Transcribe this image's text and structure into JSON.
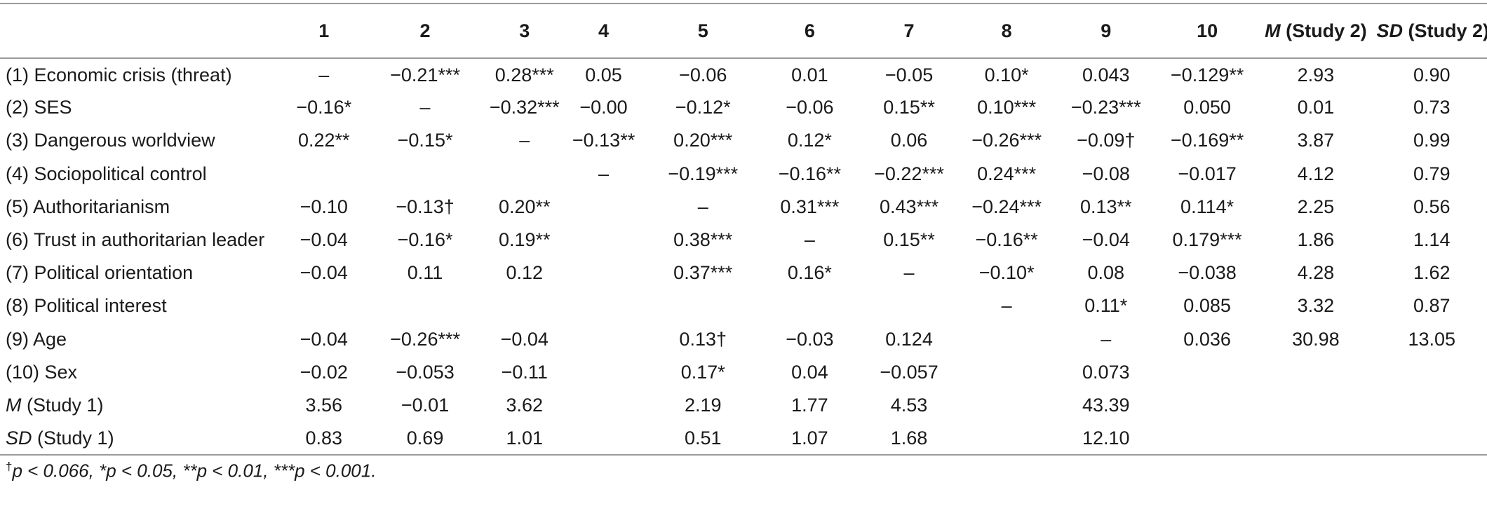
{
  "table": {
    "headers": [
      "",
      "1",
      "2",
      "3",
      "4",
      "5",
      "6",
      "7",
      "8",
      "9",
      "10",
      "M (Study 2)",
      "SD (Study 2)"
    ],
    "header_m": {
      "italic": "M",
      "rest": " (Study 2)"
    },
    "header_sd": {
      "italic": "SD",
      "rest": " (Study 2)"
    },
    "rows": [
      {
        "label": "(1) Economic crisis (threat)",
        "cells": [
          "–",
          "−0.21***",
          "0.28***",
          "0.05",
          "−0.06",
          "0.01",
          "−0.05",
          "0.10*",
          "0.043",
          "−0.129**",
          "2.93",
          "0.90"
        ]
      },
      {
        "label": "(2) SES",
        "cells": [
          "−0.16*",
          "–",
          "−0.32***",
          "−0.00",
          "−0.12*",
          "−0.06",
          "0.15**",
          "0.10***",
          "−0.23***",
          "0.050",
          "0.01",
          "0.73"
        ]
      },
      {
        "label": "(3) Dangerous worldview",
        "cells": [
          "0.22**",
          "−0.15*",
          "–",
          "−0.13**",
          "0.20***",
          "0.12*",
          "0.06",
          "−0.26***",
          "−0.09†",
          "−0.169**",
          "3.87",
          "0.99"
        ]
      },
      {
        "label": "(4) Sociopolitical control",
        "cells": [
          "",
          "",
          "",
          "–",
          "−0.19***",
          "−0.16**",
          "−0.22***",
          "0.24***",
          "−0.08",
          "−0.017",
          "4.12",
          "0.79"
        ]
      },
      {
        "label": "(5) Authoritarianism",
        "cells": [
          "−0.10",
          "−0.13†",
          "0.20**",
          "",
          "–",
          "0.31***",
          "0.43***",
          "−0.24***",
          "0.13**",
          "0.114*",
          "2.25",
          "0.56"
        ]
      },
      {
        "label": "(6) Trust in authoritarian leader",
        "cells": [
          "−0.04",
          "−0.16*",
          "0.19**",
          "",
          "0.38***",
          "–",
          "0.15**",
          "−0.16**",
          "−0.04",
          "0.179***",
          "1.86",
          "1.14"
        ]
      },
      {
        "label": "(7) Political orientation",
        "cells": [
          "−0.04",
          "0.11",
          "0.12",
          "",
          "0.37***",
          "0.16*",
          "–",
          "−0.10*",
          "0.08",
          "−0.038",
          "4.28",
          "1.62"
        ]
      },
      {
        "label": "(8) Political interest",
        "cells": [
          "",
          "",
          "",
          "",
          "",
          "",
          "",
          "–",
          "0.11*",
          "0.085",
          "3.32",
          "0.87"
        ]
      },
      {
        "label": "(9) Age",
        "cells": [
          "−0.04",
          "−0.26***",
          "−0.04",
          "",
          "0.13†",
          "−0.03",
          "0.124",
          "",
          "–",
          "0.036",
          "30.98",
          "13.05"
        ]
      },
      {
        "label": "(10) Sex",
        "cells": [
          "−0.02",
          "−0.053",
          "−0.11",
          "",
          "0.17*",
          "0.04",
          "−0.057",
          "",
          "0.073",
          "",
          "",
          ""
        ]
      },
      {
        "label_italic": "M",
        "label_rest": " (Study 1)",
        "cells": [
          "3.56",
          "−0.01",
          "3.62",
          "",
          "2.19",
          "1.77",
          "4.53",
          "",
          "43.39",
          "",
          "",
          ""
        ]
      },
      {
        "label_italic": "SD",
        "label_rest": " (Study 1)",
        "cells": [
          "0.83",
          "0.69",
          "1.01",
          "",
          "0.51",
          "1.07",
          "1.68",
          "",
          "12.10",
          "",
          "",
          ""
        ]
      }
    ]
  },
  "footnote": {
    "dagger": "†",
    "text": "p < 0.066, *p < 0.05, **p < 0.01, ***p < 0.001."
  }
}
